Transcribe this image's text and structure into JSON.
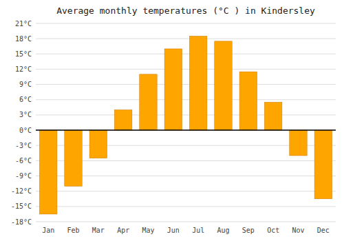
{
  "chart_data": {
    "type": "bar",
    "title": "Average monthly temperatures (°C ) in Kindersley",
    "categories": [
      "Jan",
      "Feb",
      "Mar",
      "Apr",
      "May",
      "Jun",
      "Jul",
      "Aug",
      "Sep",
      "Oct",
      "Nov",
      "Dec"
    ],
    "values": [
      -16.5,
      -11.0,
      -5.5,
      4.0,
      11.0,
      16.0,
      18.5,
      17.5,
      11.5,
      5.5,
      -5.0,
      -13.5
    ],
    "color": "#FFA500",
    "ylim": [
      -18,
      21
    ],
    "yticks": [
      {
        "value": -18,
        "label": "-18°C"
      },
      {
        "value": -15,
        "label": "-15°C"
      },
      {
        "value": -12,
        "label": "-12°C"
      },
      {
        "value": -9,
        "label": "-9°C"
      },
      {
        "value": -6,
        "label": "-6°C"
      },
      {
        "value": -3,
        "label": "-3°C"
      },
      {
        "value": 0,
        "label": "0°C"
      },
      {
        "value": 3,
        "label": "3°C"
      },
      {
        "value": 6,
        "label": "6°C"
      },
      {
        "value": 9,
        "label": "9°C"
      },
      {
        "value": 12,
        "label": "12°C"
      },
      {
        "value": 15,
        "label": "15°C"
      },
      {
        "value": 18,
        "label": "18°C"
      },
      {
        "value": 21,
        "label": "21°C"
      }
    ],
    "grid": true
  }
}
